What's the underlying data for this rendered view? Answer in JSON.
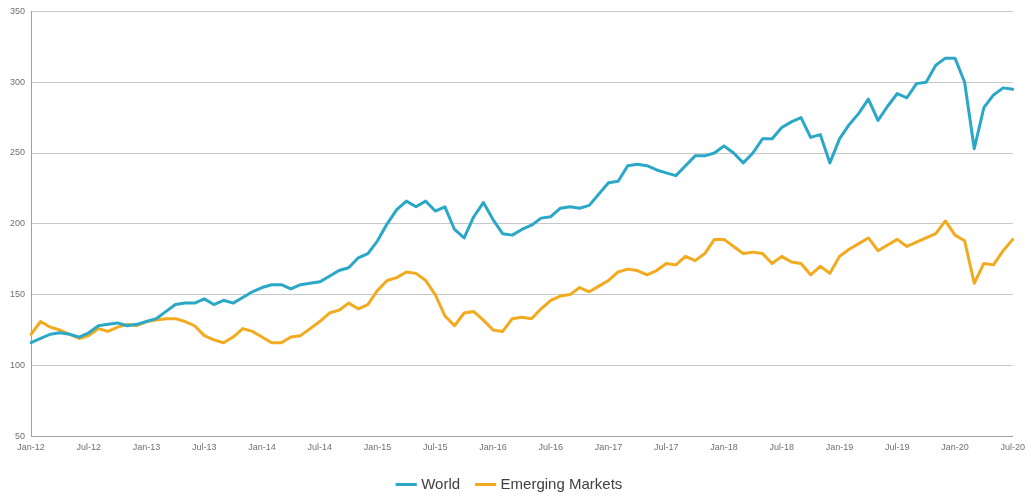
{
  "chart_data": {
    "type": "line",
    "categories": [
      "Jan-12",
      null,
      null,
      null,
      null,
      null,
      "Jul-12",
      null,
      null,
      null,
      null,
      null,
      "Jan-13",
      null,
      null,
      null,
      null,
      null,
      "Jul-13",
      null,
      null,
      null,
      null,
      null,
      "Jan-14",
      null,
      null,
      null,
      null,
      null,
      "Jul-14",
      null,
      null,
      null,
      null,
      null,
      "Jan-15",
      null,
      null,
      null,
      null,
      null,
      "Jul-15",
      null,
      null,
      null,
      null,
      null,
      "Jan-16",
      null,
      null,
      null,
      null,
      null,
      "Jul-16",
      null,
      null,
      null,
      null,
      null,
      "Jan-17",
      null,
      null,
      null,
      null,
      null,
      "Jul-17",
      null,
      null,
      null,
      null,
      null,
      "Jan-18",
      null,
      null,
      null,
      null,
      null,
      "Jul-18",
      null,
      null,
      null,
      null,
      null,
      "Jan-19",
      null,
      null,
      null,
      null,
      null,
      "Jul-19",
      null,
      null,
      null,
      null,
      null,
      "Jan-20",
      null,
      null,
      null,
      null,
      null,
      "Jul-20"
    ],
    "series": [
      {
        "name": "World",
        "color": "#2ba8c8",
        "values": [
          116,
          119,
          122,
          123,
          122,
          120,
          123,
          128,
          129,
          130,
          128,
          129,
          131,
          133,
          138,
          143,
          144,
          144,
          147,
          143,
          146,
          144,
          148,
          152,
          155,
          157,
          157,
          154,
          157,
          158,
          159,
          163,
          167,
          169,
          176,
          179,
          188,
          200,
          210,
          216,
          212,
          216,
          209,
          212,
          196,
          190,
          205,
          215,
          203,
          193,
          192,
          196,
          199,
          204,
          205,
          211,
          212,
          211,
          213,
          221,
          229,
          230,
          241,
          242,
          241,
          238,
          236,
          234,
          241,
          248,
          248,
          250,
          255,
          250,
          243,
          250,
          260,
          260,
          268,
          272,
          275,
          261,
          263,
          243,
          260,
          270,
          278,
          288,
          273,
          283,
          292,
          289,
          299,
          300,
          312,
          317,
          317,
          300,
          253,
          282,
          291,
          296,
          295
        ]
      },
      {
        "name": "Emerging Markets",
        "color": "#f2aa1e",
        "values": [
          122,
          131,
          127,
          125,
          122,
          119,
          121,
          126,
          124,
          127,
          129,
          128,
          131,
          132,
          133,
          133,
          131,
          128,
          121,
          118,
          116,
          120,
          126,
          124,
          120,
          116,
          116,
          120,
          121,
          126,
          131,
          137,
          139,
          144,
          140,
          143,
          153,
          160,
          162,
          166,
          165,
          160,
          150,
          135,
          128,
          137,
          138,
          132,
          125,
          124,
          133,
          134,
          133,
          140,
          146,
          149,
          150,
          155,
          152,
          156,
          160,
          166,
          168,
          167,
          164,
          167,
          172,
          171,
          177,
          174,
          179,
          189,
          189,
          184,
          179,
          180,
          179,
          172,
          177,
          173,
          172,
          164,
          170,
          165,
          177,
          182,
          186,
          190,
          181,
          185,
          189,
          184,
          187,
          190,
          193,
          202,
          192,
          188,
          158,
          172,
          171,
          181,
          189
        ]
      }
    ],
    "ylim": [
      50,
      350
    ],
    "yticks": [
      50,
      100,
      150,
      200,
      250,
      300,
      350
    ],
    "grid": "y",
    "legend": "bottom",
    "marker": "none",
    "line_style": "solid"
  }
}
